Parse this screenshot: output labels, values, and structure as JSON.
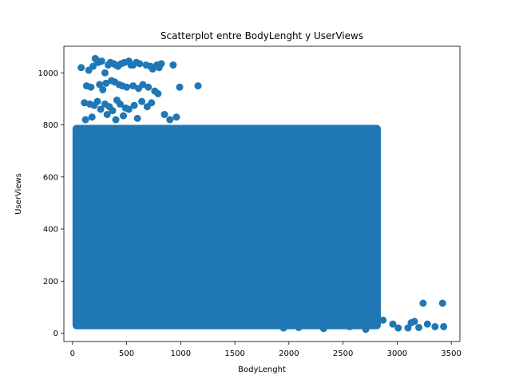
{
  "chart_data": {
    "type": "scatter",
    "title": "Scatterplot entre BodyLenght y UserViews",
    "xlabel": "BodyLenght",
    "ylabel": "UserViews",
    "xlim": [
      -80,
      3580
    ],
    "ylim": [
      -32,
      1102
    ],
    "xticks": [
      0,
      500,
      1000,
      1500,
      2000,
      2500,
      3000,
      3500
    ],
    "yticks": [
      0,
      200,
      400,
      600,
      800,
      1000
    ],
    "grid": false,
    "marker_color": "#1f77b4",
    "dense_region": {
      "x": [
        0,
        2850
      ],
      "y": [
        15,
        800
      ]
    },
    "series": [
      {
        "x": [
          80,
          150,
          190,
          210,
          220,
          240,
          270,
          300,
          330,
          350,
          380,
          400,
          420,
          450,
          480,
          520,
          540,
          560,
          590,
          620,
          680,
          720,
          740,
          780,
          800,
          820,
          930,
          990,
          1160,
          130,
          170,
          250,
          280,
          310,
          360,
          390,
          430,
          460,
          500,
          560,
          610,
          650,
          700,
          760,
          790,
          110,
          160,
          200,
          230,
          260,
          300,
          340,
          370,
          410,
          440,
          490,
          520,
          570,
          640,
          690,
          730,
          120,
          180,
          320,
          400,
          470,
          600,
          850,
          900,
          960,
          3240,
          3420,
          3430,
          3280,
          3160,
          3130,
          3100,
          3010,
          2960,
          3200,
          3350,
          2870,
          2320,
          2560,
          2710,
          1950,
          2090
        ],
        "y": [
          1020,
          1010,
          1025,
          1055,
          1050,
          1040,
          1045,
          1000,
          1030,
          1040,
          1035,
          1030,
          1025,
          1035,
          1040,
          1045,
          1030,
          1030,
          1040,
          1035,
          1030,
          1025,
          1015,
          1030,
          1020,
          1035,
          1030,
          945,
          950,
          950,
          945,
          955,
          935,
          960,
          970,
          965,
          955,
          950,
          945,
          950,
          940,
          955,
          945,
          930,
          920,
          885,
          880,
          875,
          890,
          860,
          880,
          870,
          855,
          895,
          880,
          865,
          860,
          875,
          890,
          870,
          885,
          820,
          830,
          840,
          820,
          835,
          825,
          840,
          820,
          830,
          115,
          115,
          25,
          35,
          45,
          40,
          20,
          20,
          35,
          22,
          25,
          50,
          18,
          25,
          15,
          20,
          22
        ]
      }
    ]
  }
}
